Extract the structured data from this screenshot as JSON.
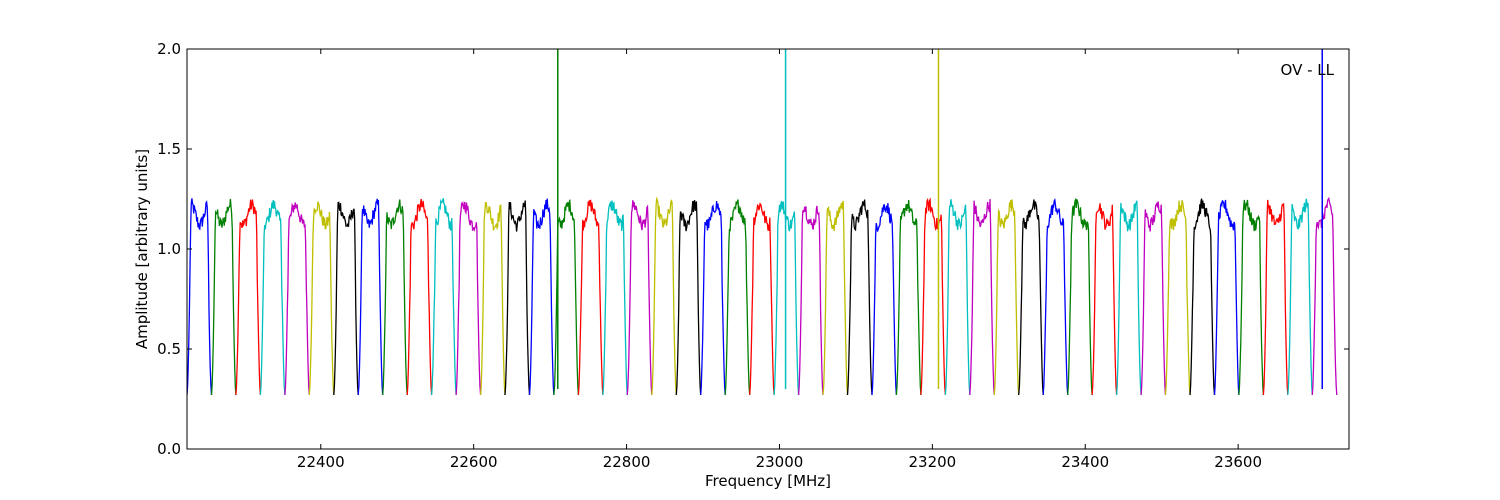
{
  "chart_data": {
    "type": "line",
    "title": "",
    "xlabel": "Frequency [MHz]",
    "ylabel": "Amplitude [arbitrary units]",
    "annotation": "OV - LL",
    "xlim": [
      22225,
      23745
    ],
    "ylim": [
      0.0,
      2.0
    ],
    "xticks": [
      22400,
      22600,
      22800,
      23000,
      23200,
      23400,
      23600
    ],
    "xtick_labels": [
      "22400",
      "22600",
      "22800",
      "23000",
      "23200",
      "23400",
      "23600"
    ],
    "yticks": [
      0.0,
      0.5,
      1.0,
      1.5,
      2.0
    ],
    "ytick_labels": [
      "0.0",
      "0.5",
      "1.0",
      "1.5",
      "2.0"
    ],
    "grid": false,
    "legend": "none",
    "color_cycle": [
      "#0000ff",
      "#008000",
      "#ff0000",
      "#00bfbf",
      "#bf00bf",
      "#bfbf00",
      "#000000"
    ],
    "passband_width_mhz": 32,
    "passband_level": 1.17,
    "passband_min": 0.27,
    "passband_low_edges_mhz": [
      22225,
      22257,
      22289,
      22321,
      22353,
      22385,
      22417,
      22449,
      22481,
      22513,
      22545,
      22577,
      22609,
      22641,
      22673,
      22705,
      22737,
      22769,
      22801,
      22833,
      22865,
      22897,
      22929,
      22961,
      22993,
      23025,
      23057,
      23089,
      23121,
      23153,
      23185,
      23217,
      23249,
      23281,
      23313,
      23345,
      23377,
      23409,
      23441,
      23473,
      23505,
      23537,
      23569,
      23601,
      23633,
      23665,
      23697
    ],
    "spikes": [
      {
        "x": 22710,
        "y": 2.0,
        "color": "#008000"
      },
      {
        "x": 23008,
        "y": 2.0,
        "color": "#00bfbf"
      },
      {
        "x": 23208,
        "y": 2.0,
        "color": "#bfbf00"
      },
      {
        "x": 23710,
        "y": 2.0,
        "color": "#0000ff"
      }
    ]
  }
}
